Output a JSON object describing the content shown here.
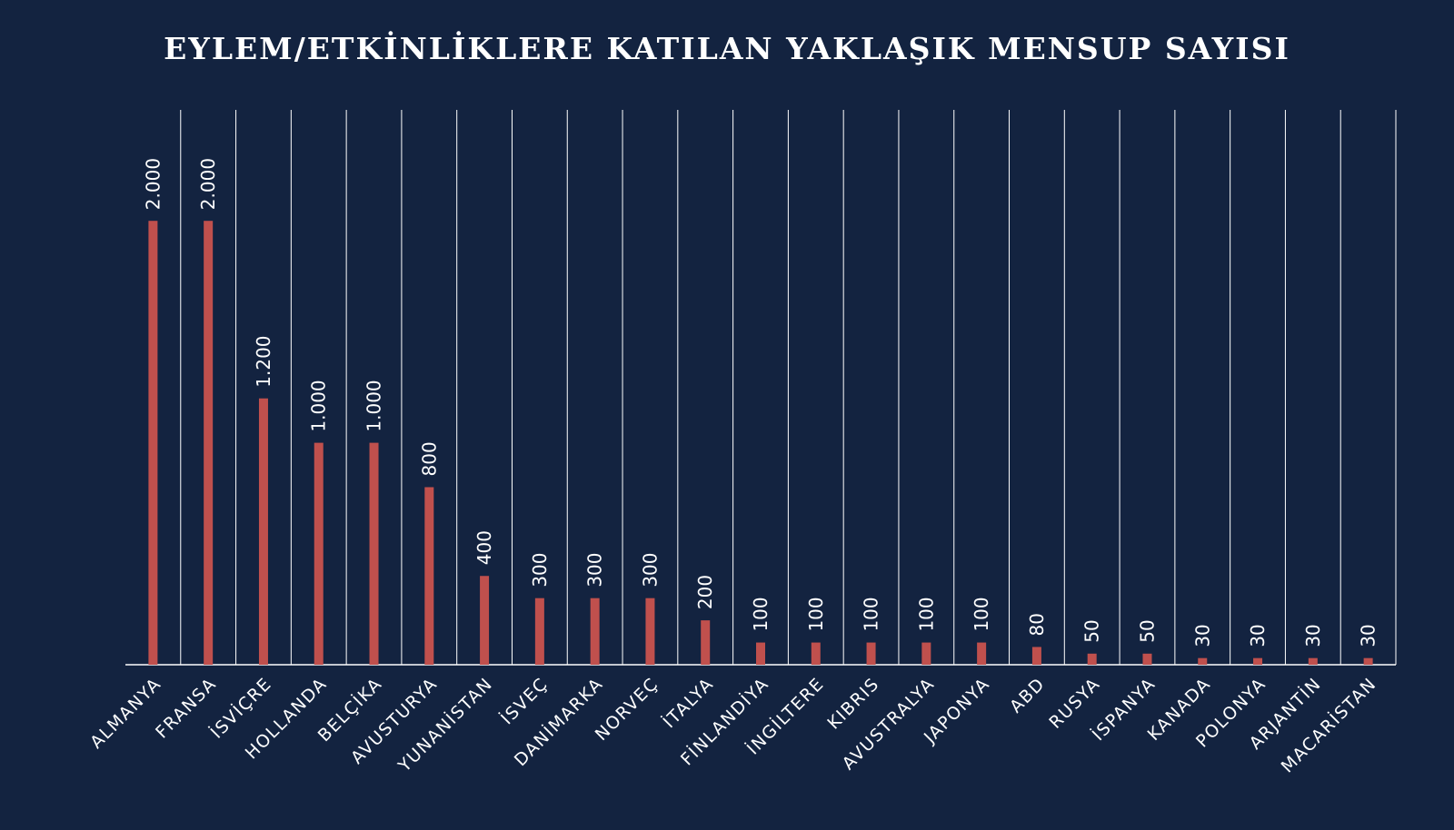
{
  "chart_data": {
    "type": "bar",
    "title": "EYLEM/ETKİNLİKLERE KATILAN YAKLAŞIK MENSUP SAYISI",
    "categories": [
      "ALMANYA",
      "FRANSA",
      "İSVİÇRE",
      "HOLLANDA",
      "BELÇİKA",
      "AVUSTURYA",
      "YUNANİSTAN",
      "İSVEÇ",
      "DANİMARKA",
      "NORVEÇ",
      "İTALYA",
      "FİNLANDİYA",
      "İNGİLTERE",
      "KIBRIS",
      "AVUSTRALYA",
      "JAPONYA",
      "ABD",
      "RUSYA",
      "İSPANYA",
      "KANADA",
      "POLONYA",
      "ARJANTİN",
      "MACARİSTAN"
    ],
    "values": [
      2000,
      2000,
      1200,
      1000,
      1000,
      800,
      400,
      300,
      300,
      300,
      200,
      100,
      100,
      100,
      100,
      100,
      80,
      50,
      50,
      30,
      30,
      30,
      30
    ],
    "value_labels": [
      "2.000",
      "2.000",
      "1.200",
      "1.000",
      "1.000",
      "800",
      "400",
      "300",
      "300",
      "300",
      "200",
      "100",
      "100",
      "100",
      "100",
      "100",
      "80",
      "50",
      "50",
      "30",
      "30",
      "30",
      "30"
    ],
    "ylim": [
      0,
      2500
    ],
    "grid": "vertical",
    "colors": {
      "background": "#132340",
      "bar": "#c0504d",
      "text": "#ffffff"
    }
  }
}
